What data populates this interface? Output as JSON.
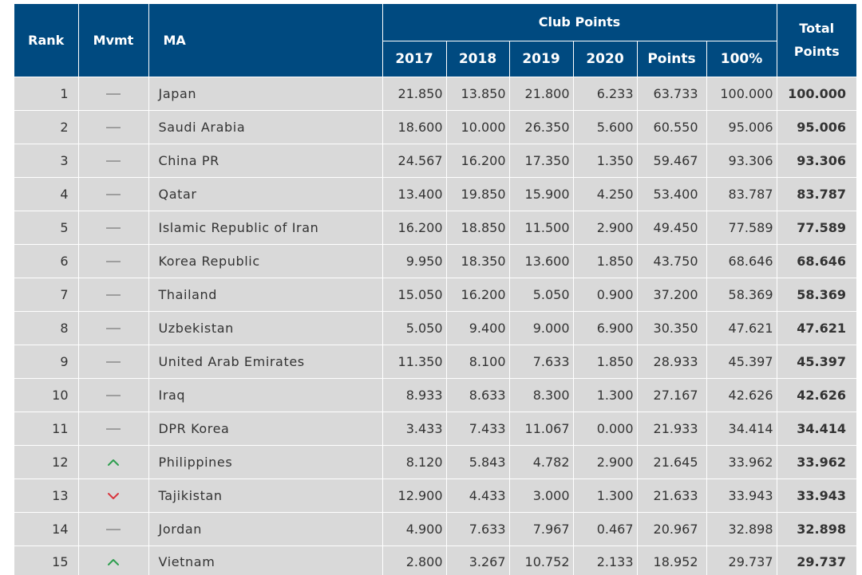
{
  "headers": {
    "rank": "Rank",
    "mvmt": "Mvmt",
    "ma": "MA",
    "club_points": "Club Points",
    "total_line1": "Total",
    "total_line2": "Points",
    "y2017": "2017",
    "y2018": "2018",
    "y2019": "2019",
    "y2020": "2020",
    "points": "Points",
    "pct": "100%"
  },
  "colors": {
    "header_bg": "#004a80",
    "row_bg": "#d9d9d9",
    "up": "#2e9e4f",
    "down": "#d9363e",
    "same": "#9e9e9e"
  },
  "rows": [
    {
      "rank": "1",
      "mvmt": "same",
      "ma": "Japan",
      "y2017": "21.850",
      "y2018": "13.850",
      "y2019": "21.800",
      "y2020": "6.233",
      "points": "63.733",
      "pct": "100.000",
      "total": "100.000"
    },
    {
      "rank": "2",
      "mvmt": "same",
      "ma": "Saudi Arabia",
      "y2017": "18.600",
      "y2018": "10.000",
      "y2019": "26.350",
      "y2020": "5.600",
      "points": "60.550",
      "pct": "95.006",
      "total": "95.006"
    },
    {
      "rank": "3",
      "mvmt": "same",
      "ma": "China PR",
      "y2017": "24.567",
      "y2018": "16.200",
      "y2019": "17.350",
      "y2020": "1.350",
      "points": "59.467",
      "pct": "93.306",
      "total": "93.306"
    },
    {
      "rank": "4",
      "mvmt": "same",
      "ma": "Qatar",
      "y2017": "13.400",
      "y2018": "19.850",
      "y2019": "15.900",
      "y2020": "4.250",
      "points": "53.400",
      "pct": "83.787",
      "total": "83.787"
    },
    {
      "rank": "5",
      "mvmt": "same",
      "ma": "Islamic Republic of Iran",
      "y2017": "16.200",
      "y2018": "18.850",
      "y2019": "11.500",
      "y2020": "2.900",
      "points": "49.450",
      "pct": "77.589",
      "total": "77.589"
    },
    {
      "rank": "6",
      "mvmt": "same",
      "ma": "Korea Republic",
      "y2017": "9.950",
      "y2018": "18.350",
      "y2019": "13.600",
      "y2020": "1.850",
      "points": "43.750",
      "pct": "68.646",
      "total": "68.646"
    },
    {
      "rank": "7",
      "mvmt": "same",
      "ma": "Thailand",
      "y2017": "15.050",
      "y2018": "16.200",
      "y2019": "5.050",
      "y2020": "0.900",
      "points": "37.200",
      "pct": "58.369",
      "total": "58.369"
    },
    {
      "rank": "8",
      "mvmt": "same",
      "ma": "Uzbekistan",
      "y2017": "5.050",
      "y2018": "9.400",
      "y2019": "9.000",
      "y2020": "6.900",
      "points": "30.350",
      "pct": "47.621",
      "total": "47.621"
    },
    {
      "rank": "9",
      "mvmt": "same",
      "ma": "United Arab Emirates",
      "y2017": "11.350",
      "y2018": "8.100",
      "y2019": "7.633",
      "y2020": "1.850",
      "points": "28.933",
      "pct": "45.397",
      "total": "45.397"
    },
    {
      "rank": "10",
      "mvmt": "same",
      "ma": "Iraq",
      "y2017": "8.933",
      "y2018": "8.633",
      "y2019": "8.300",
      "y2020": "1.300",
      "points": "27.167",
      "pct": "42.626",
      "total": "42.626"
    },
    {
      "rank": "11",
      "mvmt": "same",
      "ma": "DPR Korea",
      "y2017": "3.433",
      "y2018": "7.433",
      "y2019": "11.067",
      "y2020": "0.000",
      "points": "21.933",
      "pct": "34.414",
      "total": "34.414"
    },
    {
      "rank": "12",
      "mvmt": "up",
      "ma": "Philippines",
      "y2017": "8.120",
      "y2018": "5.843",
      "y2019": "4.782",
      "y2020": "2.900",
      "points": "21.645",
      "pct": "33.962",
      "total": "33.962"
    },
    {
      "rank": "13",
      "mvmt": "down",
      "ma": "Tajikistan",
      "y2017": "12.900",
      "y2018": "4.433",
      "y2019": "3.000",
      "y2020": "1.300",
      "points": "21.633",
      "pct": "33.943",
      "total": "33.943"
    },
    {
      "rank": "14",
      "mvmt": "same",
      "ma": "Jordan",
      "y2017": "4.900",
      "y2018": "7.633",
      "y2019": "7.967",
      "y2020": "0.467",
      "points": "20.967",
      "pct": "32.898",
      "total": "32.898"
    },
    {
      "rank": "15",
      "mvmt": "up",
      "ma": "Vietnam",
      "y2017": "2.800",
      "y2018": "3.267",
      "y2019": "10.752",
      "y2020": "2.133",
      "points": "18.952",
      "pct": "29.737",
      "total": "29.737"
    }
  ]
}
